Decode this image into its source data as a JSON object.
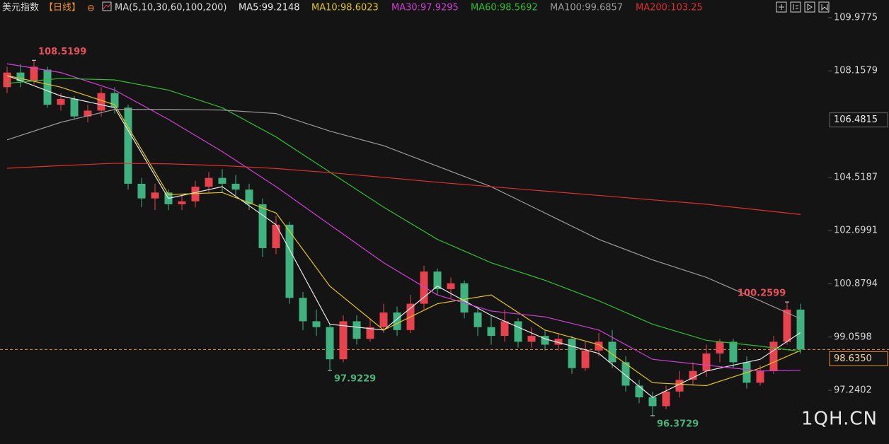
{
  "chart_data": {
    "type": "candlestick",
    "title": "美元指数",
    "period": "【日线】",
    "ma_header": "MA(5,10,30,60,100,200)",
    "open": [
      107.6,
      108.1,
      107.8,
      108.2,
      107.0,
      107.2,
      106.6,
      106.8,
      107.4,
      106.9,
      104.3,
      103.8,
      104.0,
      103.6,
      103.7,
      104.2,
      104.5,
      104.3,
      104.1,
      103.6,
      102.1,
      102.9,
      100.4,
      99.6,
      99.4,
      98.3,
      99.6,
      99.0,
      99.4,
      99.9,
      99.3,
      100.2,
      101.3,
      100.7,
      100.9,
      99.9,
      99.4,
      99.1,
      99.6,
      98.9,
      99.1,
      98.8,
      99.0,
      98.0,
      98.6,
      98.9,
      98.2,
      97.4,
      97.0,
      96.7,
      97.2,
      97.6,
      97.9,
      98.5,
      98.9,
      98.2,
      97.5,
      97.9,
      98.9,
      100.0
    ],
    "high": [
      108.3,
      108.4,
      108.5199,
      108.3,
      107.4,
      107.3,
      107.0,
      107.6,
      107.6,
      107.0,
      104.5,
      104.3,
      104.1,
      103.9,
      104.4,
      104.7,
      104.8,
      104.6,
      104.3,
      103.8,
      103.2,
      103.0,
      100.6,
      100.0,
      99.5,
      99.8,
      99.8,
      99.7,
      100.2,
      100.1,
      100.5,
      101.5,
      101.4,
      101.1,
      101.0,
      100.1,
      99.8,
      100.0,
      99.7,
      99.4,
      99.3,
      99.2,
      99.1,
      98.9,
      99.2,
      99.3,
      98.4,
      97.6,
      97.2,
      97.4,
      97.9,
      98.2,
      98.8,
      99.0,
      99.0,
      98.4,
      98.1,
      99.1,
      100.2599,
      100.2
    ],
    "low": [
      107.4,
      107.6,
      107.7,
      106.9,
      106.8,
      106.5,
      106.4,
      106.6,
      106.7,
      104.1,
      103.5,
      103.4,
      103.4,
      103.4,
      103.5,
      104.0,
      104.0,
      103.9,
      103.4,
      101.8,
      101.9,
      100.2,
      99.3,
      99.1,
      97.9229,
      98.2,
      98.8,
      98.9,
      99.2,
      99.1,
      99.2,
      100.0,
      100.5,
      100.4,
      99.7,
      99.1,
      98.8,
      98.9,
      98.7,
      98.7,
      98.6,
      98.6,
      97.8,
      97.9,
      98.4,
      98.0,
      97.2,
      96.8,
      96.3729,
      96.6,
      97.0,
      97.4,
      97.7,
      98.2,
      98.0,
      97.3,
      97.4,
      97.8,
      98.8,
      98.5
    ],
    "close": [
      108.1,
      107.8,
      108.3,
      107.0,
      107.2,
      106.6,
      106.8,
      107.4,
      106.9,
      104.3,
      103.8,
      104.0,
      103.6,
      103.7,
      104.2,
      104.5,
      104.3,
      104.1,
      103.6,
      102.1,
      102.9,
      100.4,
      99.6,
      99.4,
      98.3,
      99.6,
      99.0,
      99.4,
      99.9,
      99.3,
      100.2,
      101.3,
      100.7,
      100.9,
      99.9,
      99.4,
      99.1,
      99.6,
      98.9,
      99.1,
      98.8,
      99.0,
      98.0,
      98.6,
      98.9,
      98.2,
      97.4,
      97.0,
      96.7,
      97.2,
      97.6,
      97.9,
      98.5,
      98.9,
      98.2,
      97.5,
      97.9,
      98.9,
      100.0,
      98.635
    ],
    "up_color": "#e8424e",
    "down_color": "#3fb27f",
    "ma_x": [
      0,
      4,
      8,
      12,
      16,
      20,
      24,
      28,
      32,
      36,
      40,
      44,
      48,
      52,
      56,
      59
    ],
    "series": [
      {
        "name": "MA5:99.2148",
        "color": "#e8e8e8",
        "values": [
          108.0,
          107.3,
          106.9,
          103.8,
          104.2,
          102.9,
          99.5,
          99.3,
          100.8,
          99.8,
          99.0,
          98.5,
          97.0,
          97.9,
          98.3,
          99.2148
        ]
      },
      {
        "name": "MA10:98.6023",
        "color": "#e3c51c",
        "values": [
          108.0,
          107.6,
          107.0,
          103.93,
          104.0,
          103.3,
          100.8,
          99.3,
          100.2,
          100.5,
          99.3,
          98.8,
          97.5,
          97.4,
          98.0,
          98.6023
        ]
      },
      {
        "name": "MA30:97.9295",
        "color": "#d13fd6",
        "values": [
          108.4,
          108.1,
          107.5,
          106.5,
          105.4,
          104.2,
          102.9,
          101.6,
          100.5,
          99.95,
          99.75,
          99.3,
          98.3,
          98.1,
          97.9,
          97.9295
        ]
      },
      {
        "name": "MA60:98.5692",
        "color": "#2fbf2f",
        "values": [
          107.73,
          107.9,
          107.85,
          107.5,
          106.9,
          105.9,
          104.7,
          103.5,
          102.4,
          101.6,
          101.0,
          100.3,
          99.5,
          98.95,
          98.75,
          98.5692
        ]
      },
      {
        "name": "MA100:99.6857",
        "color": "#9a9a9a",
        "values": [
          105.8,
          106.4,
          106.84,
          106.84,
          106.82,
          106.7,
          106.1,
          105.6,
          104.9,
          104.2,
          103.3,
          102.4,
          101.7,
          101.1,
          100.3,
          99.6857
        ]
      },
      {
        "name": "MA200:103.25",
        "color": "#e02f2f",
        "values": [
          104.83,
          104.92,
          105.0,
          104.98,
          104.92,
          104.82,
          104.68,
          104.52,
          104.35,
          104.2,
          104.05,
          103.9,
          103.75,
          103.6,
          103.4,
          103.25
        ]
      }
    ],
    "ylim": [
      95.72,
      110.58
    ],
    "yticks": [
      109.9775,
      108.1579,
      104.5187,
      102.6991,
      100.8794,
      99.0598,
      97.2402
    ],
    "marker_price": 106.4815,
    "last_price": {
      "value": 98.635,
      "label": "98.6350"
    },
    "watermark": "1QH.CN"
  }
}
